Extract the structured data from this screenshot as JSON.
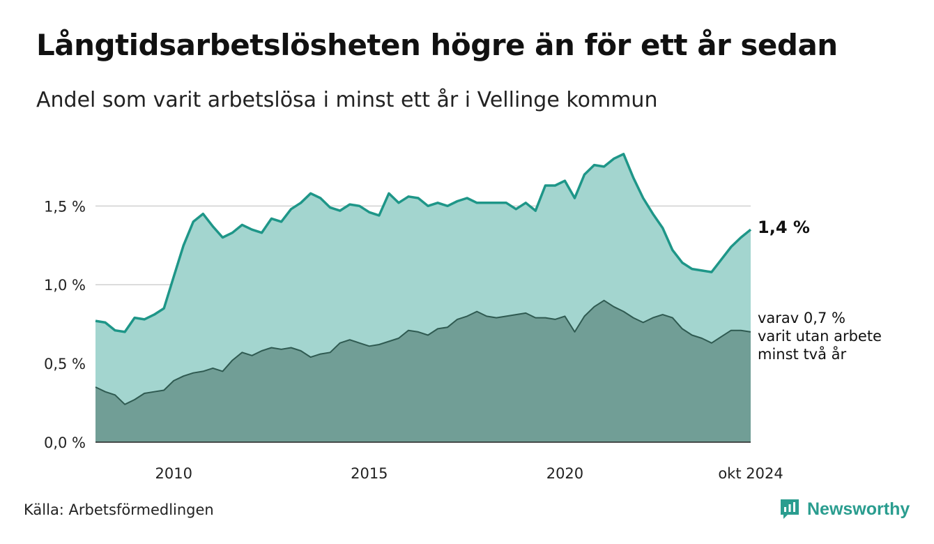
{
  "title": "Långtidsarbetslösheten högre än för ett år sedan",
  "subtitle": "Andel som varit arbetslösa i minst ett år i Vellinge kommun",
  "source": "Källa: Arbetsförmedlingen",
  "brand": "Newsworthy",
  "colors": {
    "line_main": "#1e9688",
    "area_main": "#a3d5cf",
    "line_sub": "#2f5a51",
    "area_sub": "#719e96",
    "grid": "#d0d0d0",
    "brand": "#2a9d8f"
  },
  "chart_data": {
    "type": "area",
    "x_unit": "year",
    "xlim": [
      2008.0,
      2024.75
    ],
    "ylim": [
      0,
      1.9
    ],
    "y_ticks": [
      {
        "value": 0.0,
        "label": "0,0 %"
      },
      {
        "value": 0.5,
        "label": "0,5 %"
      },
      {
        "value": 1.0,
        "label": "1,0 %"
      },
      {
        "value": 1.5,
        "label": "1,5 %"
      }
    ],
    "x_ticks": [
      {
        "value": 2010,
        "label": "2010"
      },
      {
        "value": 2015,
        "label": "2015"
      },
      {
        "value": 2020,
        "label": "2020"
      },
      {
        "value": 2024.75,
        "label": "okt 2024"
      }
    ],
    "grid": true,
    "end_label": "1,4 %",
    "sub_label_lines": [
      "varav 0,7 %",
      "varit utan arbete",
      "minst två år"
    ],
    "series": [
      {
        "key": "main",
        "x": [
          2008.0,
          2008.25,
          2008.5,
          2008.75,
          2009.0,
          2009.25,
          2009.5,
          2009.75,
          2010.0,
          2010.25,
          2010.5,
          2010.75,
          2011.0,
          2011.25,
          2011.5,
          2011.75,
          2012.0,
          2012.25,
          2012.5,
          2012.75,
          2013.0,
          2013.25,
          2013.5,
          2013.75,
          2014.0,
          2014.25,
          2014.5,
          2014.75,
          2015.0,
          2015.25,
          2015.5,
          2015.75,
          2016.0,
          2016.25,
          2016.5,
          2016.75,
          2017.0,
          2017.25,
          2017.5,
          2017.75,
          2018.0,
          2018.25,
          2018.5,
          2018.75,
          2019.0,
          2019.25,
          2019.5,
          2019.75,
          2020.0,
          2020.25,
          2020.5,
          2020.75,
          2021.0,
          2021.25,
          2021.5,
          2021.75,
          2022.0,
          2022.25,
          2022.5,
          2022.75,
          2023.0,
          2023.25,
          2023.5,
          2023.75,
          2024.0,
          2024.25,
          2024.5,
          2024.75
        ],
        "values": [
          0.77,
          0.76,
          0.71,
          0.7,
          0.79,
          0.78,
          0.81,
          0.85,
          1.05,
          1.25,
          1.4,
          1.45,
          1.37,
          1.3,
          1.33,
          1.38,
          1.35,
          1.33,
          1.42,
          1.4,
          1.48,
          1.52,
          1.58,
          1.55,
          1.49,
          1.47,
          1.51,
          1.5,
          1.46,
          1.44,
          1.58,
          1.52,
          1.56,
          1.55,
          1.5,
          1.52,
          1.5,
          1.53,
          1.55,
          1.52,
          1.52,
          1.52,
          1.52,
          1.48,
          1.52,
          1.47,
          1.63,
          1.63,
          1.66,
          1.55,
          1.7,
          1.76,
          1.75,
          1.8,
          1.83,
          1.68,
          1.55,
          1.45,
          1.36,
          1.22,
          1.14,
          1.1,
          1.09,
          1.08,
          1.16,
          1.24,
          1.3,
          1.35
        ]
      },
      {
        "key": "sub",
        "x": [
          2008.0,
          2008.25,
          2008.5,
          2008.75,
          2009.0,
          2009.25,
          2009.5,
          2009.75,
          2010.0,
          2010.25,
          2010.5,
          2010.75,
          2011.0,
          2011.25,
          2011.5,
          2011.75,
          2012.0,
          2012.25,
          2012.5,
          2012.75,
          2013.0,
          2013.25,
          2013.5,
          2013.75,
          2014.0,
          2014.25,
          2014.5,
          2014.75,
          2015.0,
          2015.25,
          2015.5,
          2015.75,
          2016.0,
          2016.25,
          2016.5,
          2016.75,
          2017.0,
          2017.25,
          2017.5,
          2017.75,
          2018.0,
          2018.25,
          2018.5,
          2018.75,
          2019.0,
          2019.25,
          2019.5,
          2019.75,
          2020.0,
          2020.25,
          2020.5,
          2020.75,
          2021.0,
          2021.25,
          2021.5,
          2021.75,
          2022.0,
          2022.25,
          2022.5,
          2022.75,
          2023.0,
          2023.25,
          2023.5,
          2023.75,
          2024.0,
          2024.25,
          2024.5,
          2024.75
        ],
        "values": [
          0.35,
          0.32,
          0.3,
          0.24,
          0.27,
          0.31,
          0.32,
          0.33,
          0.39,
          0.42,
          0.44,
          0.45,
          0.47,
          0.45,
          0.52,
          0.57,
          0.55,
          0.58,
          0.6,
          0.59,
          0.6,
          0.58,
          0.54,
          0.56,
          0.57,
          0.63,
          0.65,
          0.63,
          0.61,
          0.62,
          0.64,
          0.66,
          0.71,
          0.7,
          0.68,
          0.72,
          0.73,
          0.78,
          0.8,
          0.83,
          0.8,
          0.79,
          0.8,
          0.81,
          0.82,
          0.79,
          0.79,
          0.78,
          0.8,
          0.7,
          0.8,
          0.86,
          0.9,
          0.86,
          0.83,
          0.79,
          0.76,
          0.79,
          0.81,
          0.79,
          0.72,
          0.68,
          0.66,
          0.63,
          0.67,
          0.71,
          0.71,
          0.7
        ]
      }
    ]
  }
}
